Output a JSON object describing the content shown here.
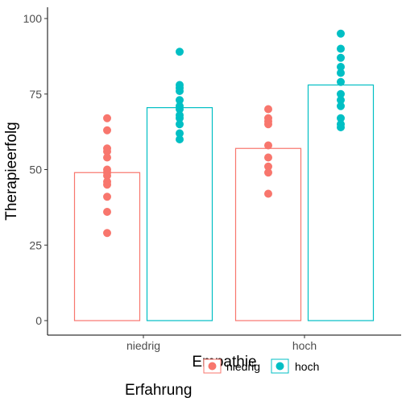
{
  "chart_data": {
    "type": "bar",
    "xlabel": "Empathie",
    "ylabel": "Therapieerfolg",
    "categories": [
      "niedrig",
      "hoch"
    ],
    "ylim": [
      0,
      100
    ],
    "yticks": [
      0,
      25,
      50,
      75,
      100
    ],
    "grid": false,
    "legend": {
      "title": "Erfahrung",
      "position": "bottom",
      "entries": [
        "niedrig",
        "hoch"
      ]
    },
    "series": [
      {
        "name": "niedrig",
        "color": "#F8766D",
        "values": [
          49,
          57
        ],
        "points": [
          [
            29,
            36,
            41,
            45,
            46,
            48,
            49,
            50,
            54,
            56,
            57,
            63,
            67
          ],
          [
            42,
            49,
            51,
            54,
            58,
            65,
            66,
            67,
            70
          ]
        ]
      },
      {
        "name": "hoch",
        "color": "#00BFC4",
        "values": [
          70.5,
          78
        ],
        "points": [
          [
            60,
            62,
            65,
            67,
            68,
            70,
            71,
            73,
            76,
            77,
            78,
            89
          ],
          [
            64,
            65,
            67,
            71,
            73,
            75,
            79,
            82,
            84,
            87,
            90,
            95
          ]
        ]
      }
    ]
  }
}
